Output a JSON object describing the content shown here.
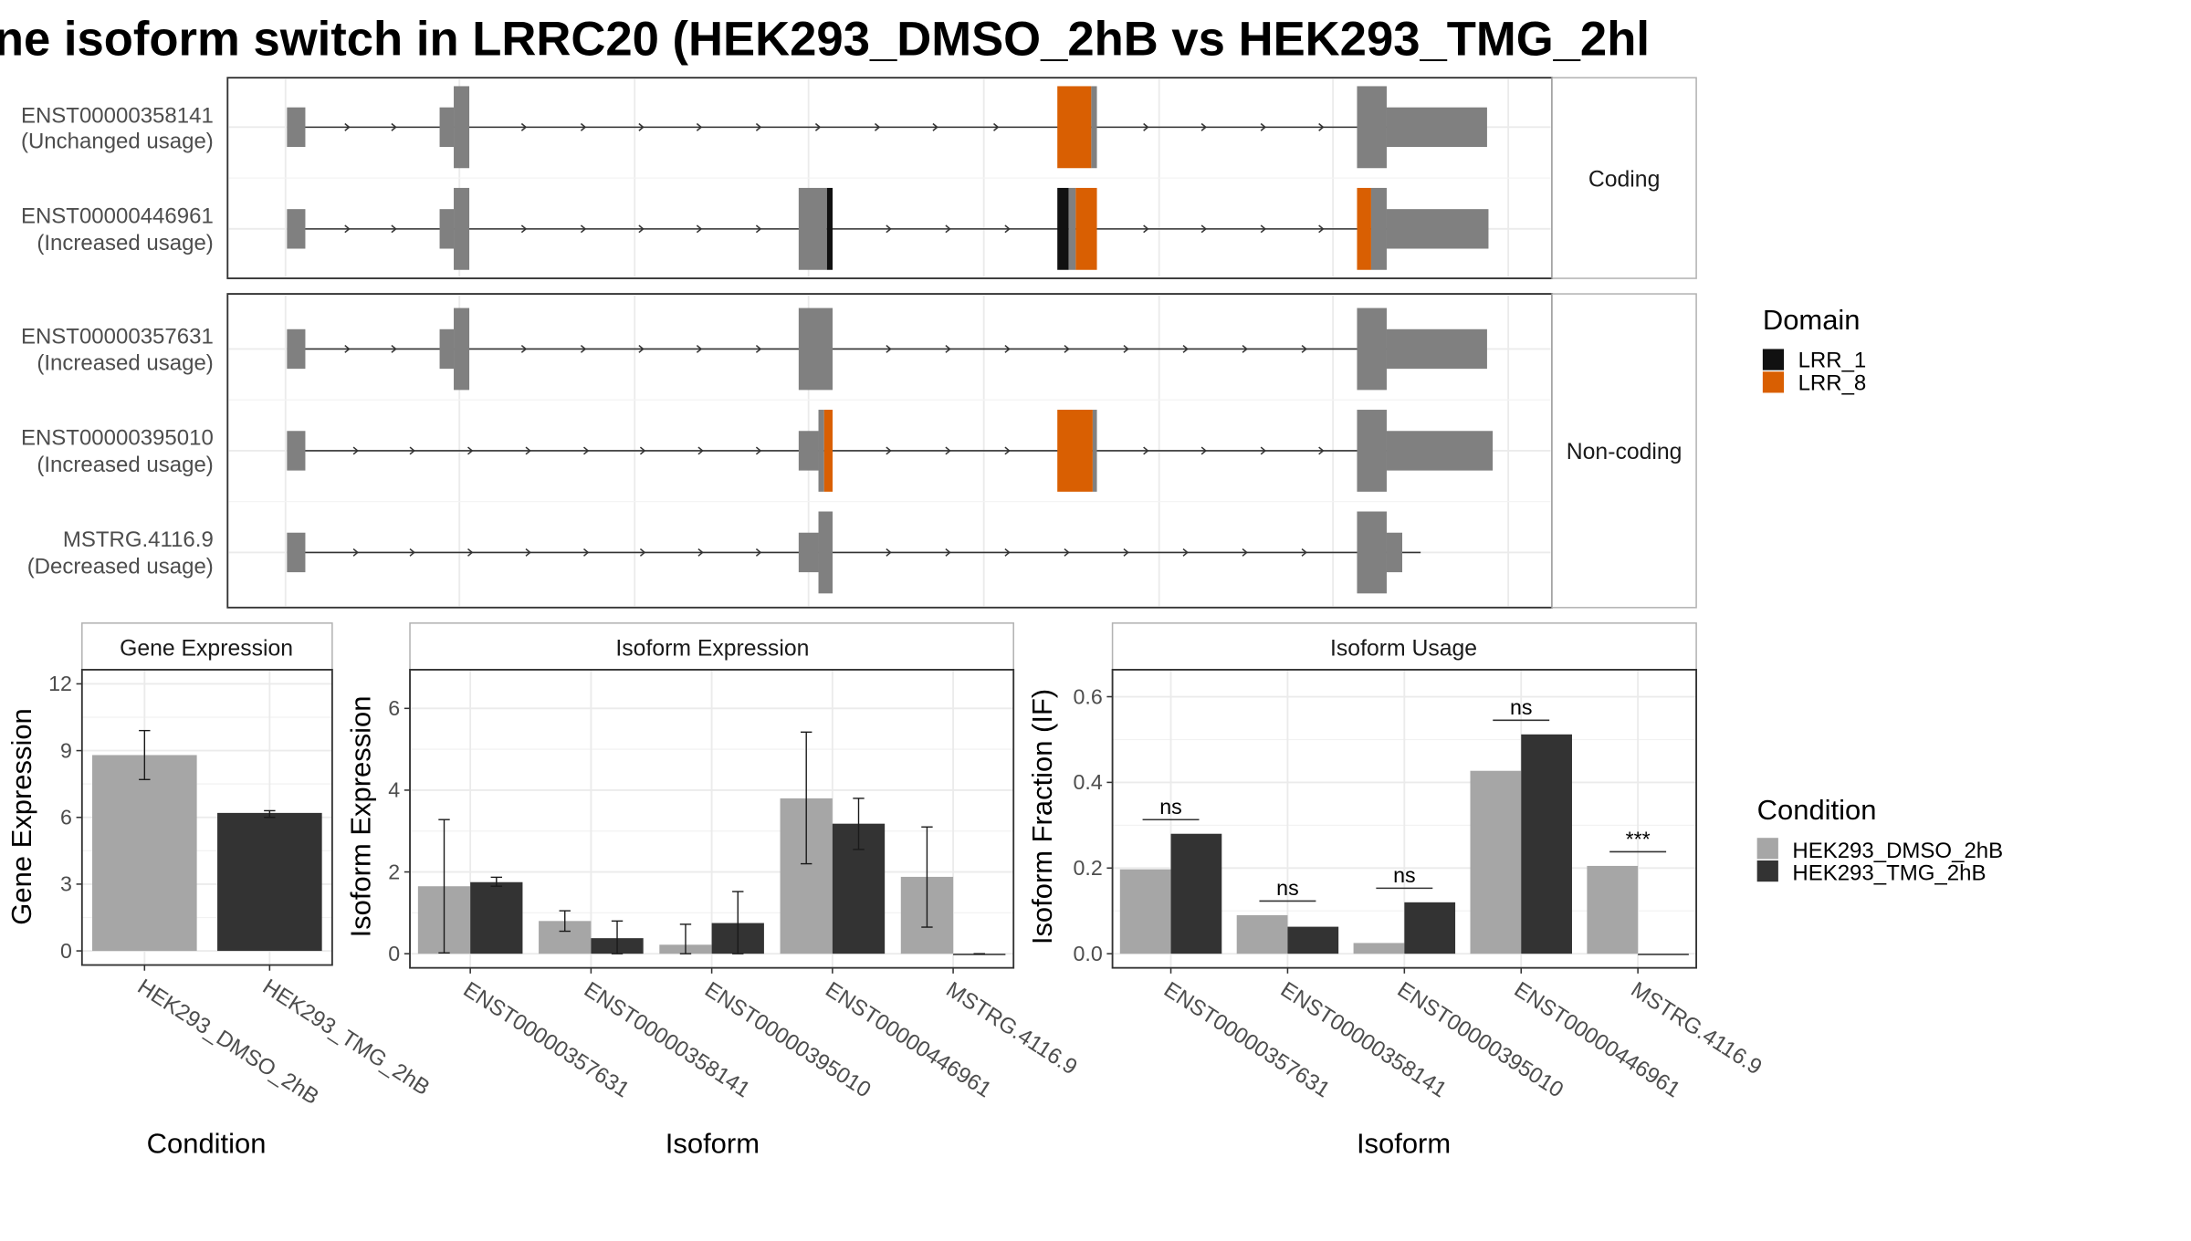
{
  "title": "ne isoform switch in LRRC20 (HEK293_DMSO_2hB vs HEK293_TMG_2hl",
  "colors": {
    "exon": "#808080",
    "LRR_1": "#111111",
    "LRR_8": "#d95f02",
    "DMSO": "#a6a6a6",
    "TMG": "#333333",
    "grid": "#ebebeb",
    "panel_border": "#333333",
    "strip_border": "#b3b3b3"
  },
  "structure": {
    "groups": [
      {
        "label": "Coding",
        "transcripts": [
          "ENST00000358141",
          "ENST00000446961"
        ]
      },
      {
        "label": "Non-coding",
        "transcripts": [
          "ENST00000357631",
          "ENST00000395010",
          "MSTRG.4116.9"
        ]
      }
    ],
    "transcripts": [
      {
        "id": "ENST00000358141",
        "usage": "(Unchanged usage)"
      },
      {
        "id": "ENST00000446961",
        "usage": "(Increased usage)"
      },
      {
        "id": "ENST00000357631",
        "usage": "(Increased usage)"
      },
      {
        "id": "ENST00000395010",
        "usage": "(Increased usage)"
      },
      {
        "id": "MSTRG.4116.9",
        "usage": "(Decreased usage)"
      }
    ]
  },
  "domain_legend": {
    "title": "Domain",
    "items": [
      {
        "label": "LRR_1",
        "color": "#111111"
      },
      {
        "label": "LRR_8",
        "color": "#d95f02"
      }
    ]
  },
  "condition_legend": {
    "title": "Condition",
    "items": [
      {
        "label": "HEK293_DMSO_2hB",
        "color": "#a6a6a6"
      },
      {
        "label": "HEK293_TMG_2hB",
        "color": "#333333"
      }
    ]
  },
  "chart_data": [
    {
      "type": "bar",
      "title": "Gene Expression",
      "xlabel": "Condition",
      "ylabel": "Gene Expression",
      "categories": [
        "HEK293_DMSO_2hB",
        "HEK293_TMG_2hB"
      ],
      "values": [
        8.8,
        6.2
      ],
      "error_low": [
        7.7,
        6.0
      ],
      "error_high": [
        9.9,
        6.3
      ],
      "ylim": [
        0,
        12
      ],
      "yticks": [
        0,
        3,
        6,
        9,
        12
      ],
      "colors": [
        "#a6a6a6",
        "#333333"
      ]
    },
    {
      "type": "bar",
      "title": "Isoform Expression",
      "xlabel": "Isoform",
      "ylabel": "Isoform Expression",
      "categories": [
        "ENST00000357631",
        "ENST00000358141",
        "ENST00000395010",
        "ENST00000446961",
        "MSTRG.4116.9"
      ],
      "series": [
        {
          "name": "HEK293_DMSO_2hB",
          "values": [
            1.65,
            0.8,
            0.22,
            3.8,
            1.88
          ],
          "error_low": [
            0.02,
            0.55,
            0.0,
            2.2,
            0.65
          ],
          "error_high": [
            3.28,
            1.05,
            0.72,
            5.42,
            3.1
          ]
        },
        {
          "name": "HEK293_TMG_2hB",
          "values": [
            1.75,
            0.38,
            0.75,
            3.18,
            0.0
          ],
          "error_low": [
            1.65,
            0.0,
            0.0,
            2.55,
            0.0
          ],
          "error_high": [
            1.87,
            0.8,
            1.52,
            3.8,
            0.0
          ]
        }
      ],
      "ylim": [
        0,
        6.6
      ],
      "yticks": [
        0,
        2,
        4,
        6
      ]
    },
    {
      "type": "bar",
      "title": "Isoform Usage",
      "xlabel": "Isoform",
      "ylabel": "Isoform Fraction (IF)",
      "categories": [
        "ENST00000357631",
        "ENST00000358141",
        "ENST00000395010",
        "ENST00000446961",
        "MSTRG.4116.9"
      ],
      "series": [
        {
          "name": "HEK293_DMSO_2hB",
          "values": [
            0.197,
            0.09,
            0.025,
            0.427,
            0.205
          ]
        },
        {
          "name": "HEK293_TMG_2hB",
          "values": [
            0.28,
            0.063,
            0.12,
            0.512,
            0.0
          ]
        }
      ],
      "significance": [
        "ns",
        "ns",
        "ns",
        "ns",
        "***"
      ],
      "ylim": [
        0,
        0.63
      ],
      "yticks": [
        "0.0",
        "0.2",
        "0.4",
        "0.6"
      ]
    }
  ]
}
